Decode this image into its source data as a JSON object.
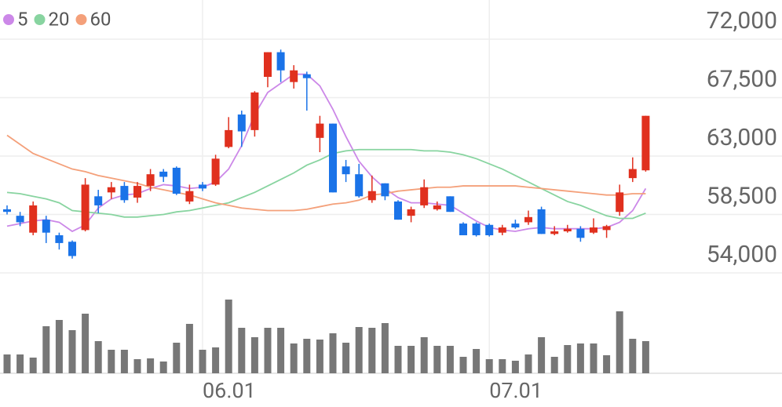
{
  "chart_data": {
    "type": "candlestick",
    "categories": [
      null,
      null,
      null,
      null,
      null,
      null,
      null,
      null,
      null,
      null,
      null,
      null,
      null,
      null,
      null,
      "06.01",
      null,
      null,
      null,
      null,
      null,
      null,
      null,
      null,
      null,
      null,
      null,
      null,
      null,
      null,
      null,
      null,
      null,
      null,
      null,
      null,
      null,
      "07.01",
      null,
      null,
      null,
      null,
      null,
      null,
      null,
      null,
      null,
      null,
      null,
      null
    ],
    "open": [
      58900,
      58400,
      57100,
      58100,
      56900,
      56400,
      57300,
      59900,
      60200,
      60700,
      59800,
      60700,
      61800,
      62100,
      59500,
      60800,
      60800,
      63700,
      66200,
      65000,
      69100,
      71000,
      68700,
      69300,
      64400,
      65500,
      62200,
      61600,
      59600,
      60900,
      59500,
      58400,
      59200,
      58900,
      59900,
      57800,
      57800,
      57700,
      57100,
      57800,
      57900,
      58900,
      57000,
      57200,
      57400,
      57100,
      57300,
      58700,
      61300,
      61900
    ],
    "high": [
      59200,
      58700,
      59500,
      58400,
      57100,
      56500,
      61300,
      60400,
      61000,
      61000,
      61000,
      62000,
      62000,
      62200,
      60800,
      61000,
      63100,
      66000,
      66500,
      68000,
      71000,
      71200,
      70000,
      69500,
      66100,
      65500,
      62700,
      62400,
      61500,
      60900,
      59600,
      59100,
      61200,
      59500,
      59900,
      57900,
      57900,
      57800,
      57700,
      58100,
      58800,
      59100,
      57600,
      57700,
      57600,
      58200,
      57700,
      60800,
      62900,
      66100
    ],
    "low": [
      58500,
      57600,
      56900,
      56300,
      55800,
      55100,
      57200,
      58600,
      59700,
      59400,
      59400,
      60300,
      61000,
      60000,
      59300,
      60300,
      60700,
      63600,
      63700,
      64500,
      68300,
      68700,
      68200,
      66500,
      63300,
      60200,
      61000,
      59800,
      59400,
      59600,
      58100,
      57900,
      59000,
      58800,
      58700,
      56900,
      56800,
      56800,
      56900,
      57400,
      57700,
      57000,
      56900,
      57100,
      56400,
      57000,
      56700,
      58400,
      61000,
      61800
    ],
    "close": [
      58700,
      57900,
      59200,
      57100,
      56300,
      55300,
      60800,
      59200,
      60600,
      59600,
      60700,
      61600,
      61400,
      60100,
      60300,
      60500,
      62800,
      65000,
      64900,
      67900,
      71000,
      69600,
      69600,
      69000,
      65500,
      60200,
      61600,
      59900,
      60300,
      59900,
      58100,
      58900,
      60600,
      59200,
      58700,
      56900,
      56900,
      56900,
      57500,
      57500,
      58300,
      57000,
      57200,
      57400,
      56700,
      57500,
      57600,
      60200,
      62000,
      66100
    ],
    "up_color": "#e0301e",
    "down_color": "#1a73e8",
    "series": [
      {
        "name": "5",
        "color": "#cc88e8",
        "values": [
          57600,
          57800,
          58000,
          58100,
          57900,
          57200,
          57700,
          59000,
          59700,
          60000,
          60100,
          60500,
          60800,
          60700,
          60500,
          60600,
          61000,
          62000,
          63800,
          66200,
          67900,
          68600,
          69300,
          69300,
          68400,
          66600,
          64500,
          62600,
          61400,
          60500,
          59800,
          59400,
          59400,
          59300,
          59200,
          58600,
          58000,
          57500,
          57300,
          57200,
          57400,
          57500,
          57400,
          57400,
          57400,
          57400,
          57500,
          57900,
          58800,
          60500
        ]
      },
      {
        "name": "20",
        "color": "#88d4a0",
        "values": [
          60200,
          60100,
          59900,
          59700,
          59400,
          58800,
          58700,
          58600,
          58500,
          58300,
          58300,
          58400,
          58500,
          58700,
          58800,
          59000,
          59200,
          59400,
          59800,
          60200,
          60700,
          61200,
          61700,
          62300,
          62700,
          63200,
          63400,
          63500,
          63500,
          63500,
          63500,
          63500,
          63400,
          63400,
          63300,
          63100,
          62800,
          62400,
          62000,
          61500,
          61000,
          60500,
          60000,
          59500,
          59200,
          58800,
          58400,
          58200,
          58200,
          58600
        ]
      },
      {
        "name": "60",
        "color": "#f4a07a",
        "values": [
          64600,
          63900,
          63200,
          62800,
          62400,
          62000,
          61800,
          61500,
          61300,
          61100,
          60900,
          60600,
          60400,
          60200,
          60000,
          59700,
          59400,
          59200,
          59000,
          58900,
          58800,
          58800,
          58800,
          58900,
          59100,
          59300,
          59400,
          59600,
          60000,
          60100,
          60300,
          60400,
          60500,
          60600,
          60600,
          60700,
          60700,
          60700,
          60700,
          60700,
          60600,
          60500,
          60400,
          60300,
          60200,
          60100,
          60000,
          60000,
          60100,
          60100
        ]
      }
    ],
    "volume": {
      "color": "#777777",
      "values": [
        24,
        24,
        20,
        60,
        68,
        55,
        76,
        41,
        30,
        30,
        18,
        19,
        15,
        39,
        63,
        30,
        33,
        94,
        58,
        46,
        58,
        58,
        38,
        44,
        43,
        51,
        39,
        59,
        58,
        64,
        35,
        35,
        46,
        35,
        35,
        21,
        31,
        18,
        18,
        16,
        24,
        46,
        21,
        36,
        38,
        38,
        23,
        79,
        44,
        41
      ]
    },
    "ylim": [
      54000,
      72000
    ],
    "yticks": [
      {
        "value": 72000,
        "label": "72,000"
      },
      {
        "value": 67500,
        "label": "67,500"
      },
      {
        "value": 63000,
        "label": "63,000"
      },
      {
        "value": 58500,
        "label": "58,500"
      },
      {
        "value": 54000,
        "label": "54,000"
      }
    ],
    "y2lim": [
      0,
      100
    ],
    "grid": true
  }
}
